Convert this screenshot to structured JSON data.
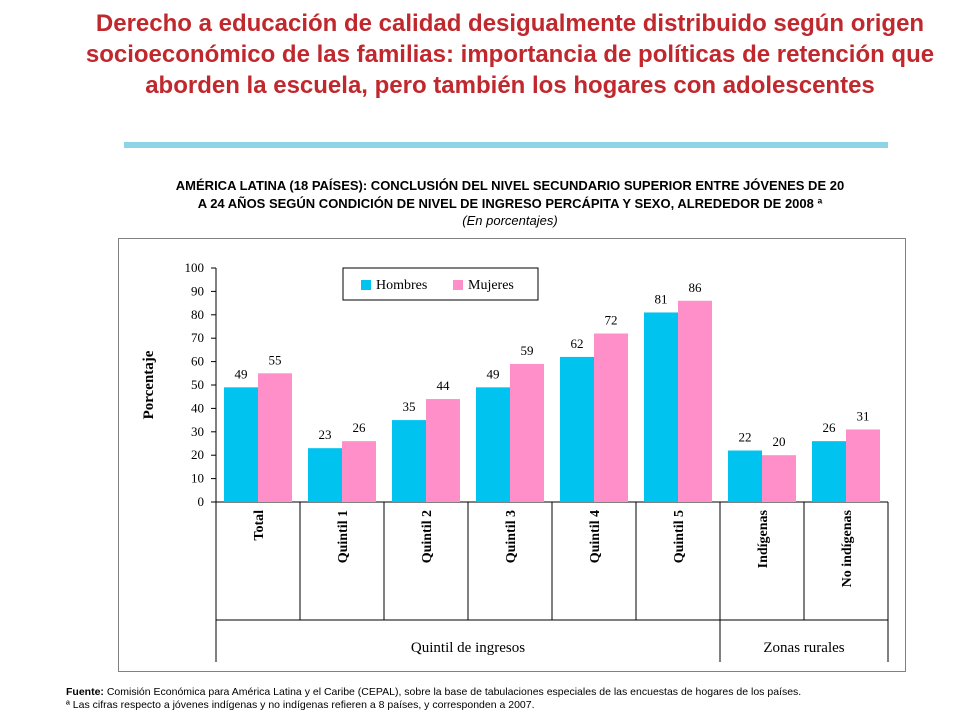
{
  "page": {
    "title": "Derecho a educación de calidad desigualmente distribuido según origen socioeconómico de las familias: importancia de políticas de retención que aborden la escuela, pero también los hogares con adolescentes",
    "subtitle_line1": "AMÉRICA LATINA (18 PAÍSES): CONCLUSIÓN DEL NIVEL SECUNDARIO SUPERIOR ENTRE JÓVENES DE 20",
    "subtitle_line2": "A 24 AÑOS SEGÚN CONDICIÓN DE NIVEL DE INGRESO PERCÁPITA Y SEXO, ALREDEDOR DE 2008 ª",
    "units": "(En porcentajes)",
    "source_label": "Fuente:",
    "source_text": "Comisión Económica para América Latina y el Caribe (CEPAL), sobre la base de tabulaciones especiales de las encuestas de hogares de los países.",
    "note": "ª Las cifras respecto a jóvenes indígenas y no indígenas refieren a 8 países, y corresponden a 2007."
  },
  "colors": {
    "title": "#c0282d",
    "hombres": "#00c3f0",
    "mujeres": "#ff8fc8",
    "rule": "#8fd3e6"
  },
  "chart_data": {
    "type": "bar",
    "ylabel": "Porcentaje",
    "ylim": [
      0,
      100
    ],
    "yticks": [
      0,
      10,
      20,
      30,
      40,
      50,
      60,
      70,
      80,
      90,
      100
    ],
    "categories": [
      "Total",
      "Quintil 1",
      "Quintil 2",
      "Quintil 3",
      "Quintil 4",
      "Quintil 5",
      "Indígenas",
      "No indígenas"
    ],
    "series": [
      {
        "name": "Hombres",
        "values": [
          49,
          23,
          35,
          49,
          62,
          81,
          22,
          26
        ]
      },
      {
        "name": "Mujeres",
        "values": [
          55,
          26,
          44,
          59,
          72,
          86,
          20,
          31
        ]
      }
    ],
    "groups": [
      {
        "label": "Quintil de ingresos",
        "categories": [
          "Total",
          "Quintil 1",
          "Quintil 2",
          "Quintil 3",
          "Quintil 4",
          "Quintil 5"
        ]
      },
      {
        "label": "Zonas rurales",
        "categories": [
          "Indígenas",
          "No indígenas"
        ]
      }
    ],
    "legend_position": "top-center",
    "grid": false
  }
}
